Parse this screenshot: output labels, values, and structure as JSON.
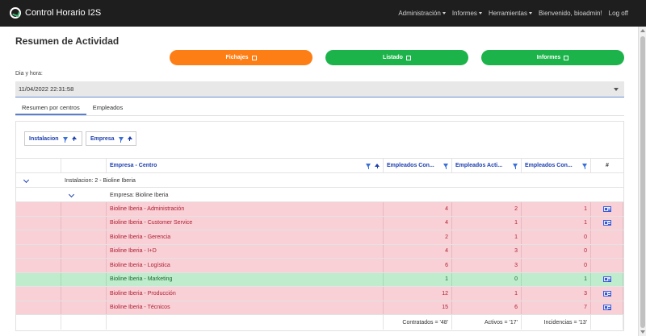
{
  "navbar": {
    "brand": "Control Horario I2S",
    "items": [
      {
        "label": "Administración",
        "dropdown": true
      },
      {
        "label": "Informes",
        "dropdown": true
      },
      {
        "label": "Herramientas",
        "dropdown": true
      },
      {
        "label": "Bienvenido, bioadmin!",
        "dropdown": false
      },
      {
        "label": "Log off",
        "dropdown": false
      }
    ]
  },
  "page": {
    "title": "Resumen de Actividad",
    "buttons": {
      "fichajes": "Fichajes",
      "listado": "Listado",
      "informes": "Informes"
    },
    "date_label": "Dia y hora:",
    "date_value": "11/04/2022 22:31:58",
    "tabs": [
      {
        "label": "Resumen por centros",
        "active": true
      },
      {
        "label": "Empleados",
        "active": false
      }
    ]
  },
  "grouping": {
    "chips": [
      "Instalacion",
      "Empresa"
    ]
  },
  "grid": {
    "headers": {
      "centro": "Empresa - Centro",
      "contratados": "Empleados Con...",
      "activos": "Empleados Acti...",
      "incidencias": "Empleados Con...",
      "actions": "#"
    },
    "group_instalacion": "Instalacion: 2 - Bioline Iberia",
    "group_empresa": "Empresa: Bioline Iberia",
    "rows": [
      {
        "centro": "Bioline Iberia - Administración",
        "contratados": "4",
        "activos": "2",
        "incidencias": "1",
        "status": "red",
        "icon": true
      },
      {
        "centro": "Bioline Iberia - Customer Service",
        "contratados": "4",
        "activos": "1",
        "incidencias": "1",
        "status": "red",
        "icon": true
      },
      {
        "centro": "Bioline Iberia - Gerencia",
        "contratados": "2",
        "activos": "1",
        "incidencias": "0",
        "status": "red",
        "icon": false
      },
      {
        "centro": "Bioline Iberia - I+D",
        "contratados": "4",
        "activos": "3",
        "incidencias": "0",
        "status": "red",
        "icon": false
      },
      {
        "centro": "Bioline Iberia - Logística",
        "contratados": "6",
        "activos": "3",
        "incidencias": "0",
        "status": "red",
        "icon": false
      },
      {
        "centro": "Bioline Iberia - Marketing",
        "contratados": "1",
        "activos": "0",
        "incidencias": "1",
        "status": "green",
        "icon": true
      },
      {
        "centro": "Bioline Iberia - Producción",
        "contratados": "12",
        "activos": "1",
        "incidencias": "3",
        "status": "red",
        "icon": true
      },
      {
        "centro": "Bioline Iberia - Técnicos",
        "contratados": "15",
        "activos": "6",
        "incidencias": "7",
        "status": "red",
        "icon": true
      }
    ],
    "footer": {
      "contratados": "Contratados = '48'",
      "activos": "Activos = '17'",
      "incidencias": "Incidencias = '13'"
    }
  },
  "colors": {
    "orange": "#fd7e14",
    "green": "#1cb34a",
    "row_red": "#f8d0d6",
    "row_green": "#bfeccd"
  }
}
